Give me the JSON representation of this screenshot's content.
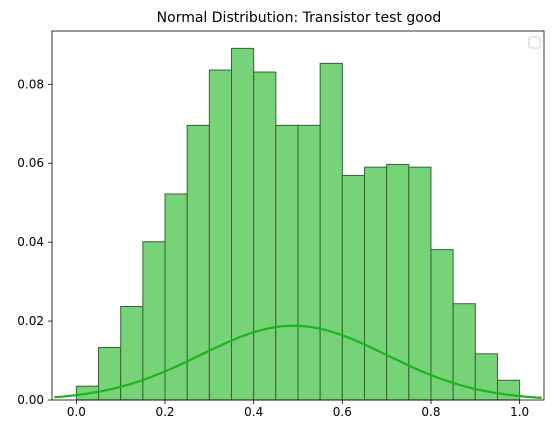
{
  "chart_data": {
    "type": "bar",
    "title": "Normal Distribution: Transistor test good",
    "xlabel": "",
    "ylabel": "",
    "xlim": [
      -0.055,
      1.055
    ],
    "ylim": [
      0,
      0.0935
    ],
    "xticks": [
      0.0,
      0.2,
      0.4,
      0.6,
      0.8,
      1.0
    ],
    "xtick_labels": [
      "0.0",
      "0.2",
      "0.4",
      "0.6",
      "0.8",
      "1.0"
    ],
    "yticks": [
      0.0,
      0.02,
      0.04,
      0.06,
      0.08
    ],
    "ytick_labels": [
      "0.00",
      "0.02",
      "0.04",
      "0.06",
      "0.08"
    ],
    "histogram": {
      "bin_edges": [
        0.0,
        0.05,
        0.1,
        0.15,
        0.2,
        0.25,
        0.3,
        0.35,
        0.4,
        0.45,
        0.5,
        0.55,
        0.6,
        0.65,
        0.7,
        0.75,
        0.8,
        0.85,
        0.9,
        0.95,
        1.0
      ],
      "values": [
        0.0035,
        0.0133,
        0.0237,
        0.0401,
        0.0522,
        0.0696,
        0.0836,
        0.0891,
        0.0831,
        0.0696,
        0.0696,
        0.0853,
        0.0569,
        0.059,
        0.0597,
        0.059,
        0.0381,
        0.0244,
        0.0117,
        0.005
      ],
      "fill_color": "#77d377",
      "edge_color": "#3b5e3b"
    },
    "curve": {
      "type": "normal_pdf",
      "mean": 0.49,
      "std": 0.21,
      "scale": 0.0099,
      "x_range": [
        -0.05,
        1.05
      ],
      "color": "#1cb51c"
    },
    "grid": false,
    "legend": {
      "location": "top-right",
      "entries": []
    }
  }
}
